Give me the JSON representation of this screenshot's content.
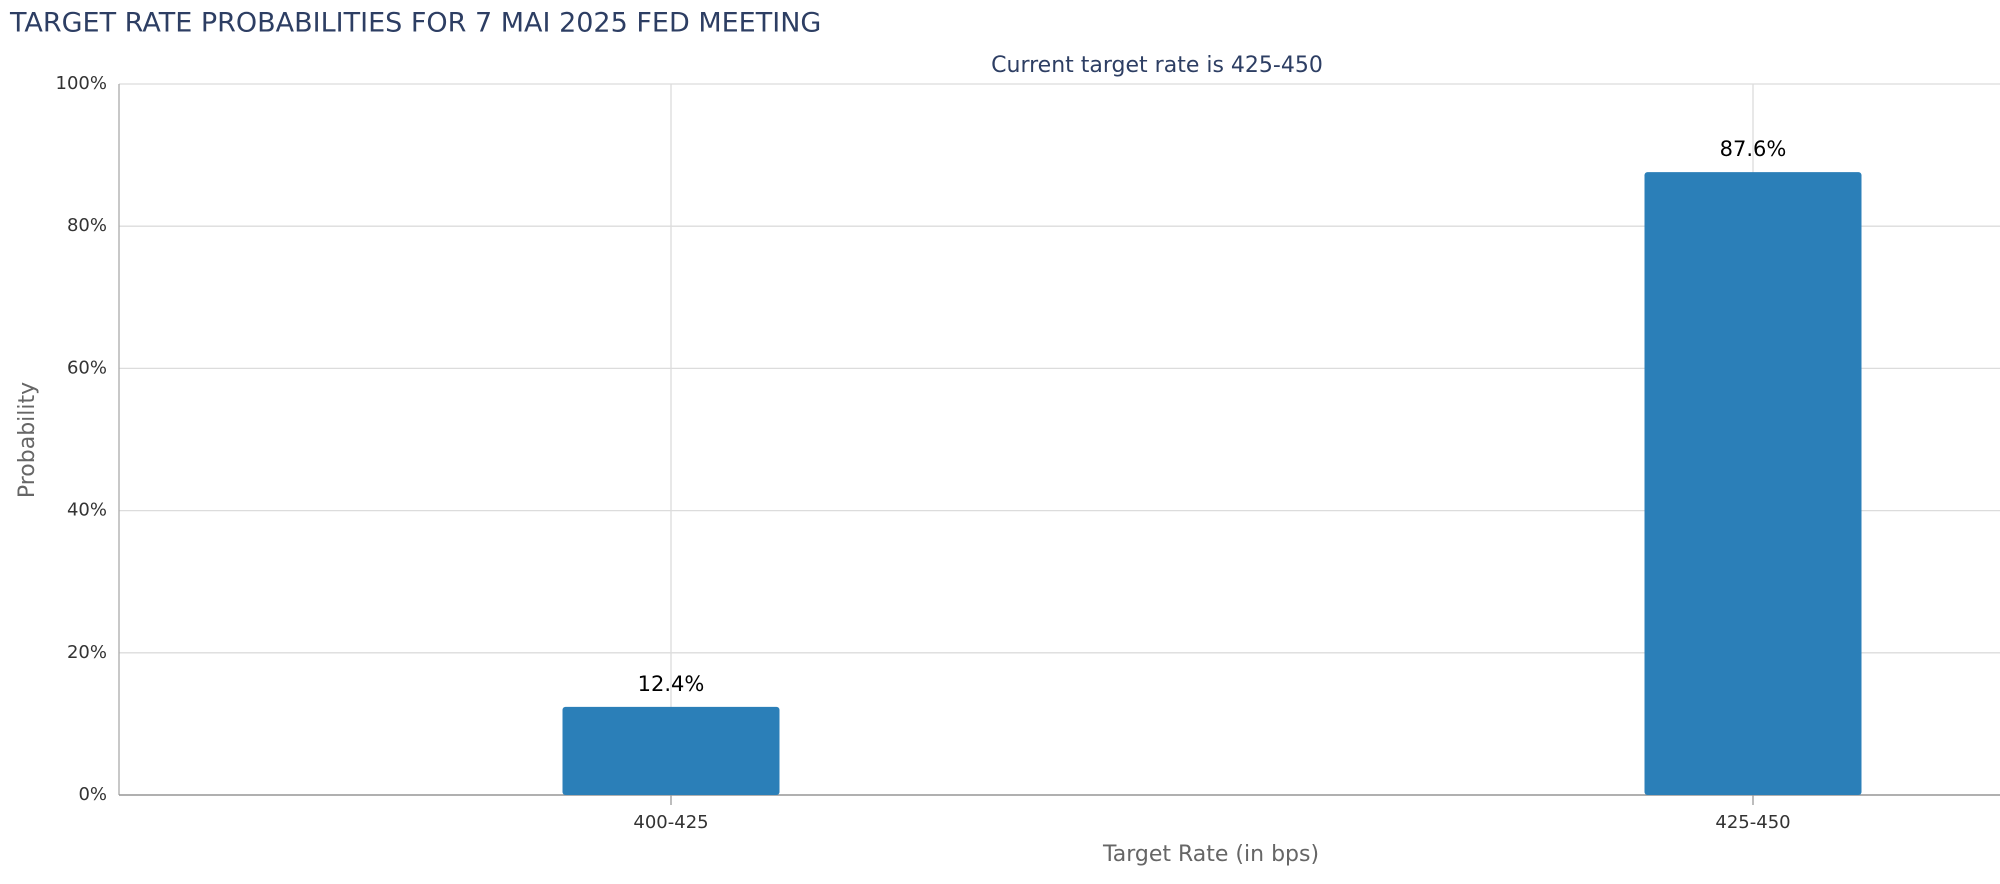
{
  "chart_data": {
    "type": "bar",
    "title": "TARGET RATE PROBABILITIES FOR 7 MAI 2025 FED MEETING",
    "subtitle": "Current target rate is 425-450",
    "x_label": "Target Rate (in bps)",
    "y_label": "Probability",
    "categories": [
      "400-425",
      "425-450"
    ],
    "values": [
      12.4,
      87.6
    ],
    "value_labels": [
      "12.4%",
      "87.6%"
    ],
    "color": "#2b7fb8",
    "ylim": [
      0,
      100
    ],
    "yticks": [
      {
        "value": 0,
        "label": "0%"
      },
      {
        "value": 20,
        "label": "20%"
      },
      {
        "value": 40,
        "label": "40%"
      },
      {
        "value": 60,
        "label": "60%"
      },
      {
        "value": 80,
        "label": "80%"
      },
      {
        "value": 100,
        "label": "100%"
      }
    ],
    "grid": true
  }
}
